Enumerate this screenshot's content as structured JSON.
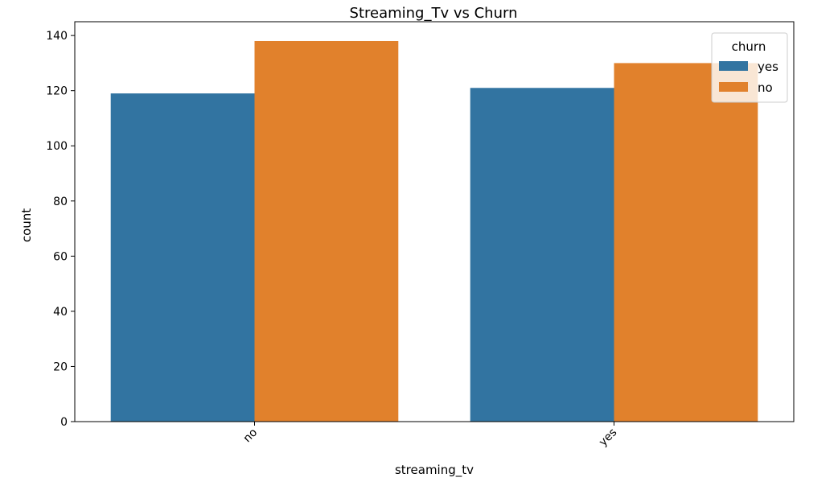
{
  "chart_data": {
    "type": "bar",
    "title": "Streaming_Tv vs Churn",
    "xlabel": "streaming_tv",
    "ylabel": "count",
    "categories": [
      "no",
      "yes"
    ],
    "series": [
      {
        "name": "yes",
        "values": [
          119,
          121
        ],
        "color": "#3274a1"
      },
      {
        "name": "no",
        "values": [
          138,
          130
        ],
        "color": "#e1812c"
      }
    ],
    "ylim": [
      0,
      145
    ],
    "yticks": [
      0,
      20,
      40,
      60,
      80,
      100,
      120,
      140
    ],
    "legend": {
      "title": "churn",
      "position": "top-right"
    },
    "grid": false
  }
}
